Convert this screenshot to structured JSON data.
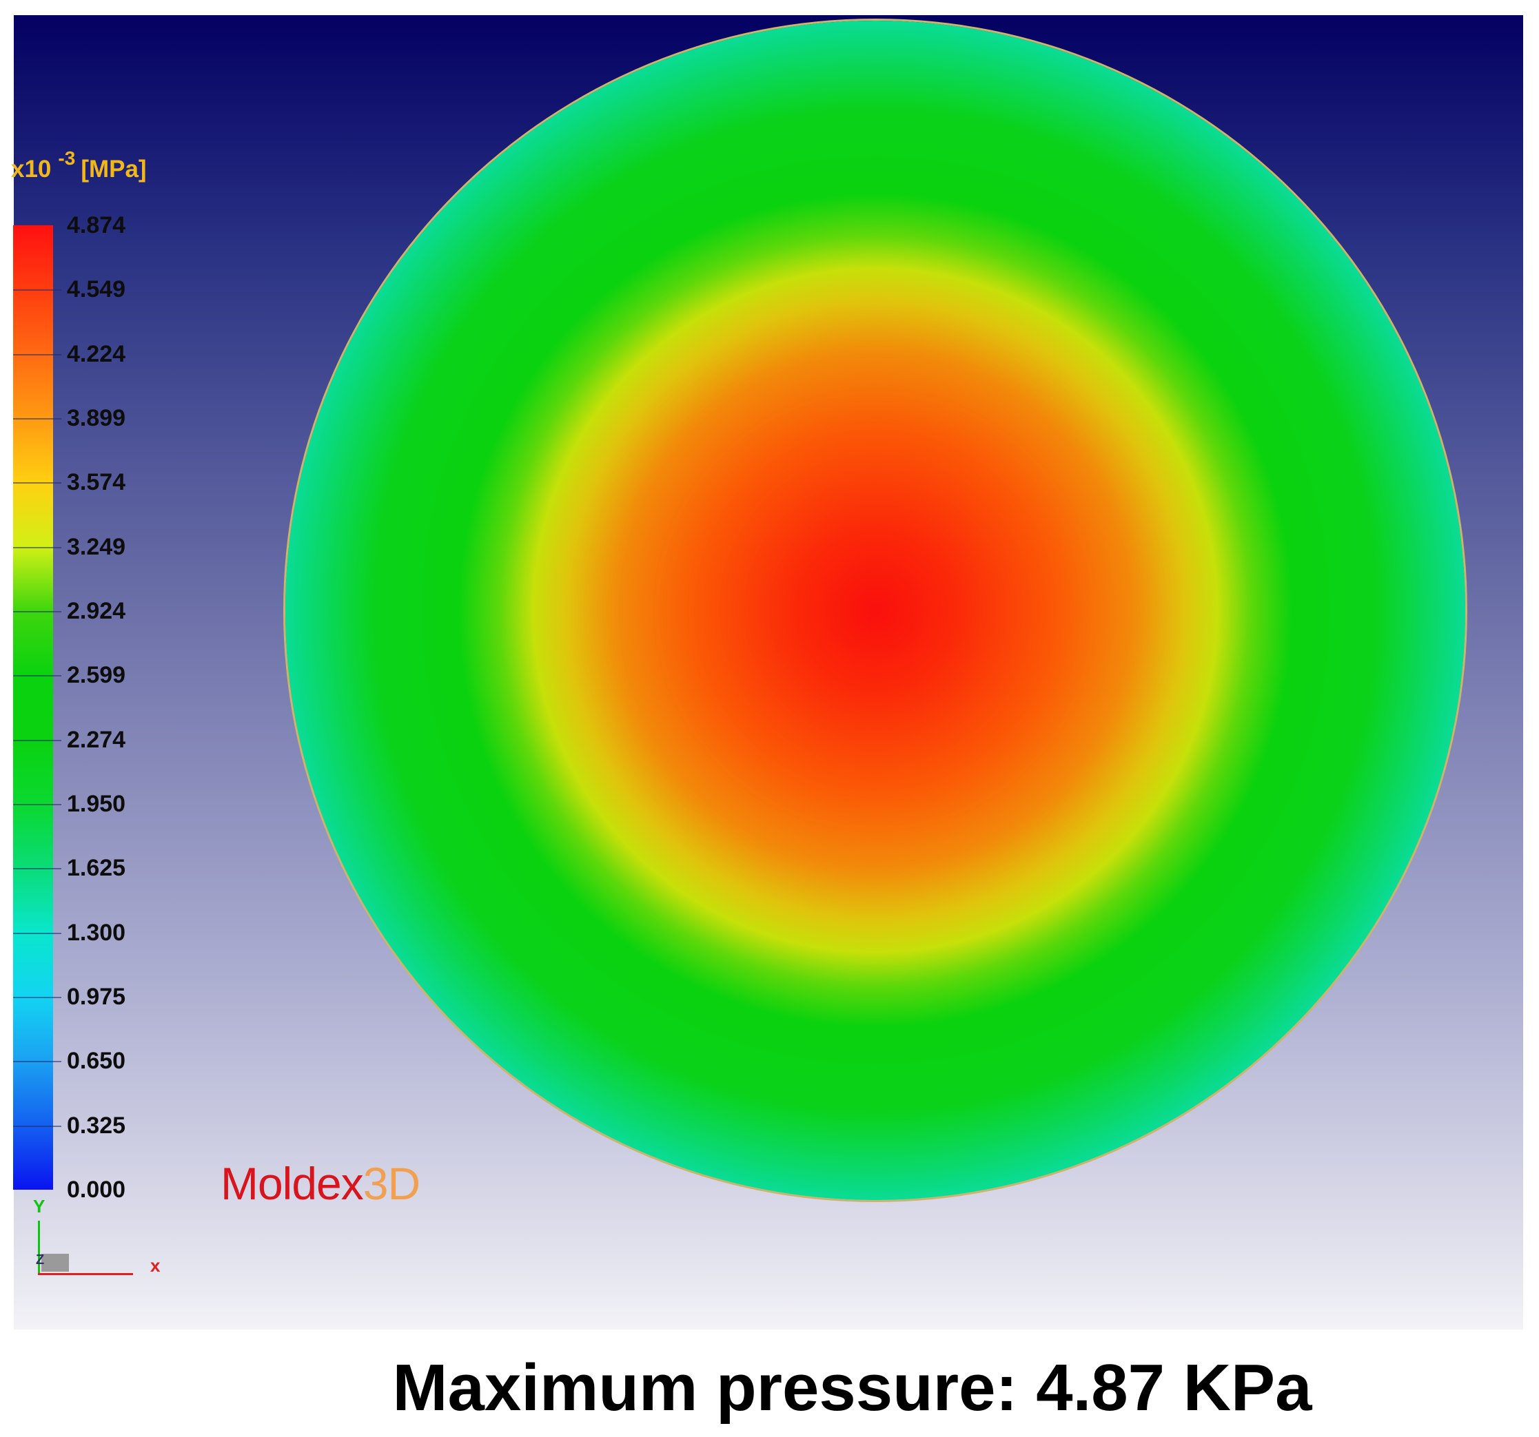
{
  "viewer": {
    "legend": {
      "unit_prefix": "x10",
      "unit_exponent": "-3",
      "unit": "[MPa]",
      "values": [
        "4.874",
        "4.549",
        "4.224",
        "3.899",
        "3.574",
        "3.249",
        "2.924",
        "2.599",
        "2.274",
        "1.950",
        "1.625",
        "1.300",
        "0.975",
        "0.650",
        "0.325",
        "0.000"
      ]
    },
    "axes": {
      "x": "x",
      "y": "Y",
      "z": "Z"
    },
    "logo": {
      "brand": "Moldex",
      "suffix": "3D"
    },
    "colors": {
      "max": "#fa0f0c",
      "min": "#0a14f0",
      "background_top": "#030062",
      "background_bottom": "#f2f2f7",
      "unit_label": "#f2b81a"
    },
    "result": {
      "max_value_mpa_e-3": 4.874,
      "min_value_mpa_e-3": 0.0
    }
  },
  "caption": "Maximum pressure: 4.87 KPa"
}
